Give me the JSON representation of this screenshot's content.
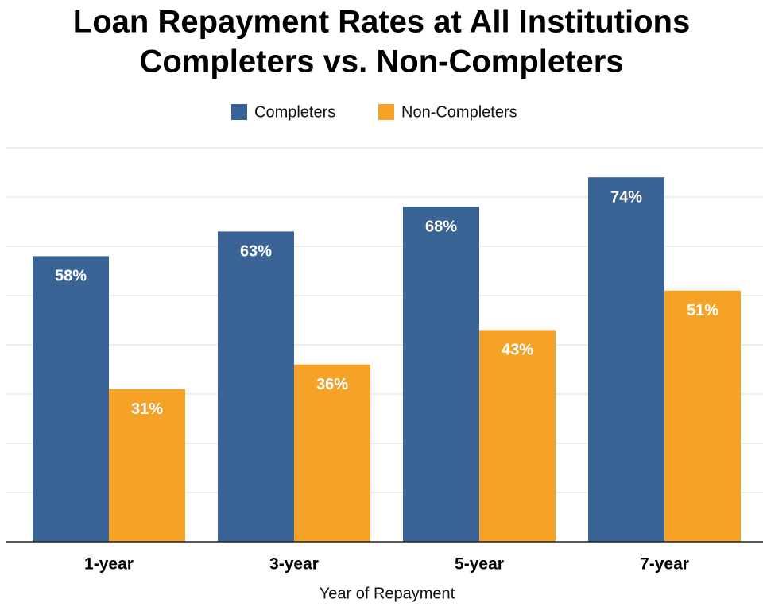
{
  "chart_data": {
    "type": "bar",
    "title": "Loan Repayment Rates at All Institutions",
    "subtitle": "Completers vs. Non-Completers",
    "x_label": "Year of Repayment",
    "categories": [
      "1-year",
      "3-year",
      "5-year",
      "7-year"
    ],
    "series": [
      {
        "name": "Completers",
        "color": "#3b6496",
        "values": [
          58,
          63,
          68,
          74
        ],
        "value_labels": [
          "58%",
          "63%",
          "68%",
          "74%"
        ]
      },
      {
        "name": "Non-Completers",
        "color": "#f5a227",
        "values": [
          31,
          36,
          43,
          51
        ],
        "value_labels": [
          "31%",
          "36%",
          "43%",
          "51%"
        ]
      }
    ],
    "ylim": [
      0,
      80
    ],
    "yticks": [
      0,
      10,
      20,
      30,
      40,
      50,
      60,
      70,
      80
    ],
    "grid": true,
    "legend": "top"
  }
}
